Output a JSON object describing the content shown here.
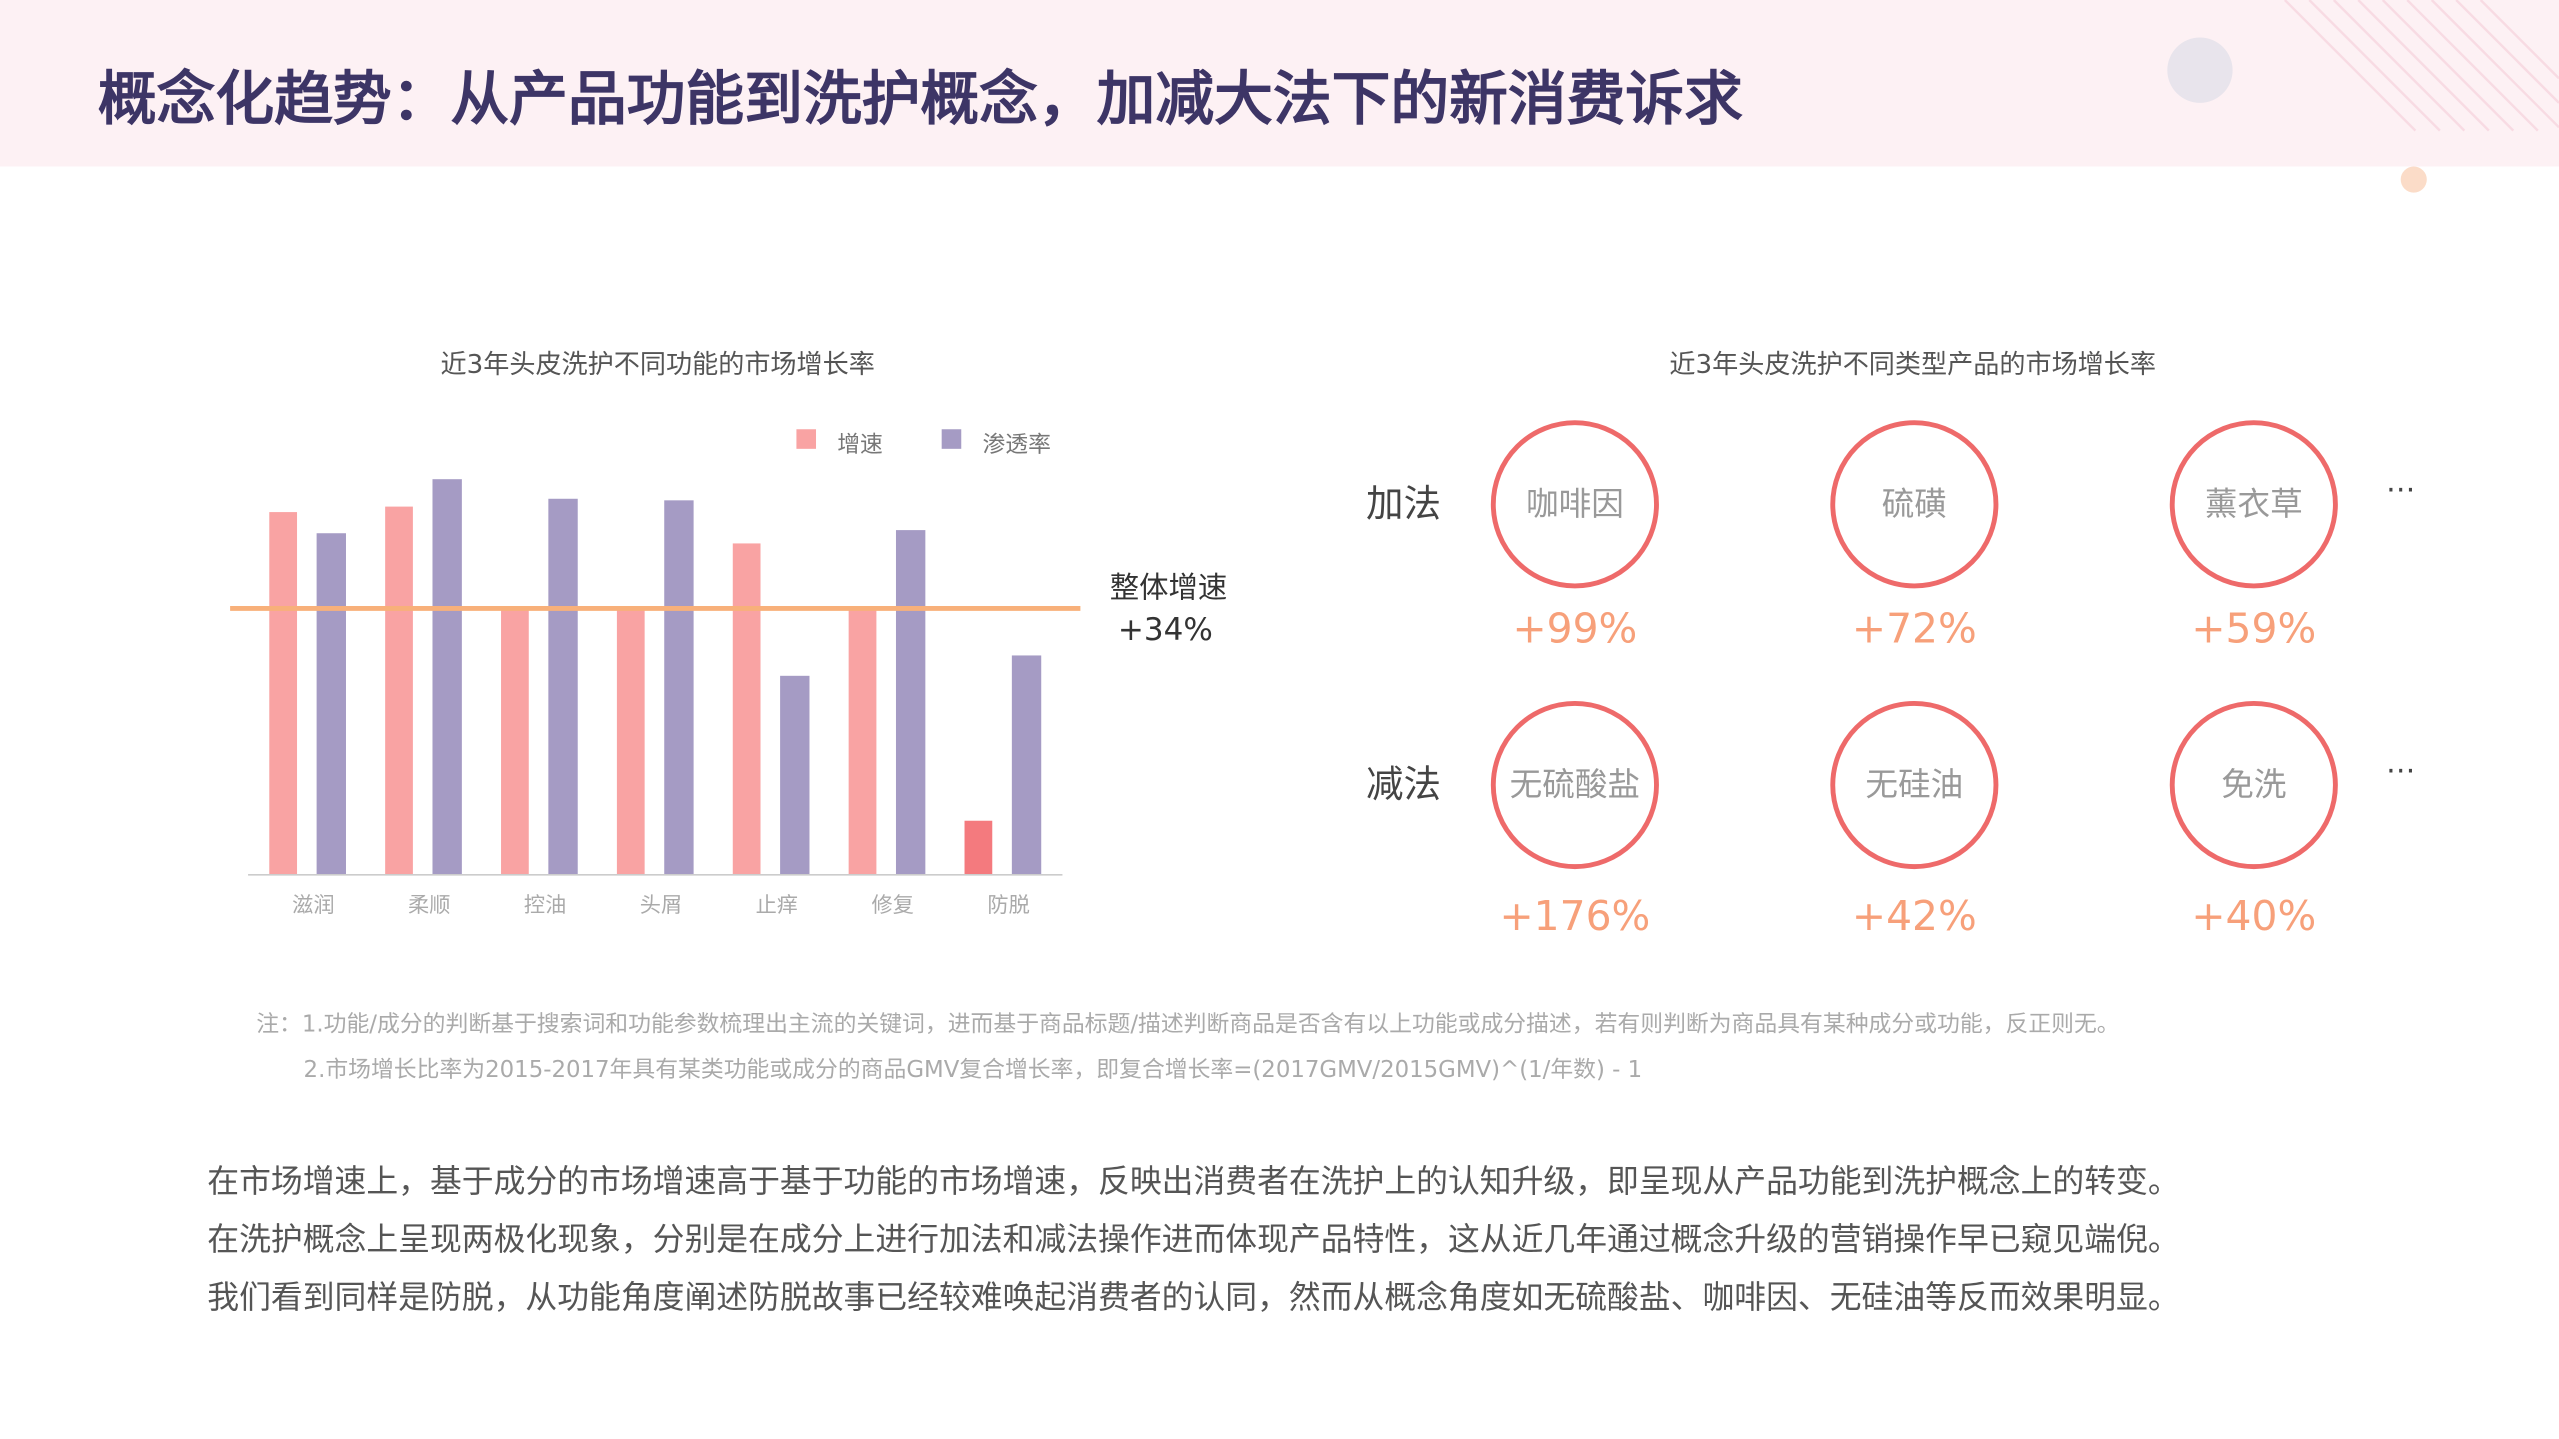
{
  "title": "概念化趋势：从产品功能到洗护概念，加减大法下的新消费诉求",
  "chart_data": {
    "type": "bar",
    "title": "近3年头皮洗护不同功能的市场增长率",
    "categories": [
      "滋润",
      "柔顺",
      "控油",
      "头屑",
      "止痒",
      "修复",
      "防脱"
    ],
    "series": [
      {
        "name": "增速",
        "color": "#f9a3a3",
        "colors": [
          "#f9a3a3",
          "#f9a3a3",
          "#f9a3a3",
          "#f9a3a3",
          "#f9a3a3",
          "#f9a3a3",
          "#f47a7e"
        ],
        "values": [
          46.3,
          47,
          34,
          34,
          42.3,
          34,
          6.9
        ]
      },
      {
        "name": "渗透率",
        "color": "#a59bc4",
        "values": [
          43.6,
          50.5,
          48,
          47.8,
          25.4,
          44,
          28
        ]
      }
    ],
    "ylim": [
      0,
      55
    ],
    "reference": {
      "label": "整体增速",
      "value": 34,
      "value_label": "+34%",
      "color": "#f8b07a"
    }
  },
  "concepts": {
    "title": "近3年头皮洗护不同类型产品的市场增长率",
    "groups": [
      {
        "label": "加法",
        "more": "…",
        "items": [
          {
            "name": "咖啡因",
            "value": 99,
            "value_label": "+99%"
          },
          {
            "name": "硫磺",
            "value": 72,
            "value_label": "+72%"
          },
          {
            "name": "薰衣草",
            "value": 59,
            "value_label": "+59%"
          }
        ]
      },
      {
        "label": "减法",
        "more": "…",
        "items": [
          {
            "name": "无硫酸盐",
            "value": 176,
            "value_label": "+176%"
          },
          {
            "name": "无硅油",
            "value": 42,
            "value_label": "+42%"
          },
          {
            "name": "免洗",
            "value": 40,
            "value_label": "+40%"
          }
        ]
      }
    ]
  },
  "notes": [
    "注：1.功能/成分的判断基于搜索词和功能参数梳理出主流的关键词，进而基于商品标题/描述判断商品是否含有以上功能或成分描述，若有则判断为商品具有某种成分或功能，反正则无。",
    "2.市场增长比率为2015-2017年具有某类功能或成分的商品GMV复合增长率，即复合增长率=(2017GMV/2015GMV)^(1/年数) - 1"
  ],
  "body": [
    "在市场增速上，基于成分的市场增速高于基于功能的市场增速，反映出消费者在洗护上的认知升级，即呈现从产品功能到洗护概念上的转变。",
    "在洗护概念上呈现两极化现象，分别是在成分上进行加法和减法操作进而体现产品特性，这从近几年通过概念升级的营销操作早已窥见端倪。",
    "我们看到同样是防脱，从功能角度阐述防脱故事已经较难唤起消费者的认同，然而从概念角度如无硫酸盐、咖啡因、无硅油等反而效果明显。"
  ]
}
